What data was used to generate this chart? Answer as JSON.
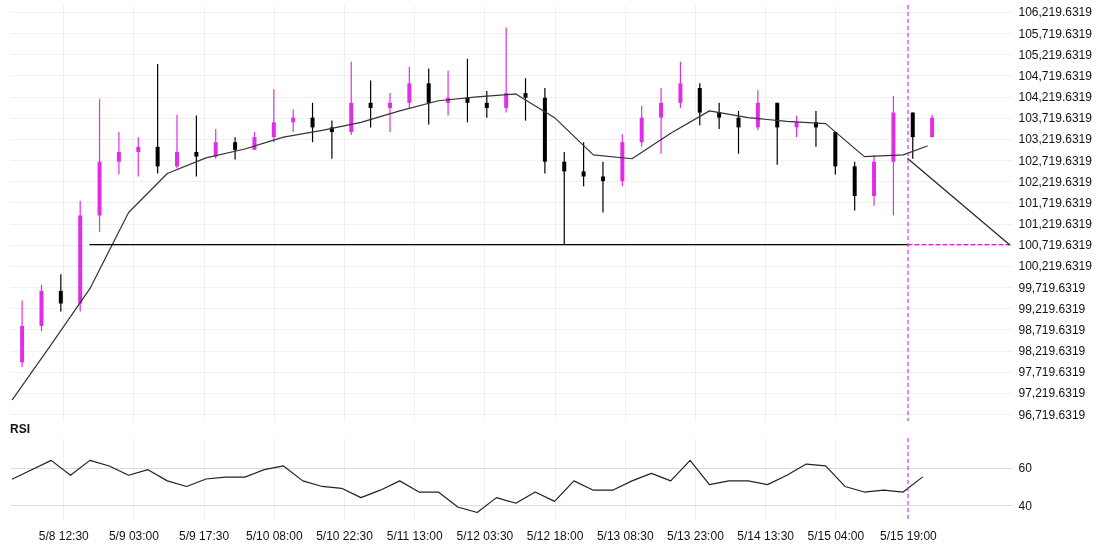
{
  "chart_data": [
    {
      "type": "candlestick",
      "tick_labels": "y",
      "grid": true,
      "xlim": [
        "--05-08T01:30",
        "--05-16T16:30"
      ],
      "ylim": [
        96555,
        106381
      ],
      "yticks": [
        {
          "value": 96719.6319,
          "label": "96,719.6319"
        },
        {
          "value": 97219.6319,
          "label": "97,219.6319"
        },
        {
          "value": 97719.6319,
          "label": "97,719.6319"
        },
        {
          "value": 98219.6319,
          "label": "98,219.6319"
        },
        {
          "value": 98719.6319,
          "label": "98,719.6319"
        },
        {
          "value": 99219.6319,
          "label": "99,219.6319"
        },
        {
          "value": 99719.6319,
          "label": "99,719.6319"
        },
        {
          "value": 100219.6319,
          "label": "100,219.6319"
        },
        {
          "value": 100719.6319,
          "label": "100,719.6319"
        },
        {
          "value": 101219.6319,
          "label": "101,219.6319"
        },
        {
          "value": 101719.6319,
          "label": "101,719.6319"
        },
        {
          "value": 102219.6319,
          "label": "102,219.6319"
        },
        {
          "value": 102719.6319,
          "label": "102,719.6319"
        },
        {
          "value": 103219.6319,
          "label": "103,219.6319"
        },
        {
          "value": 103719.6319,
          "label": "103,719.6319"
        },
        {
          "value": 104219.6319,
          "label": "104,219.6319"
        },
        {
          "value": 104719.6319,
          "label": "104,719.6319"
        },
        {
          "value": 105219.6319,
          "label": "105,219.6319"
        },
        {
          "value": 105719.6319,
          "label": "105,719.6319"
        },
        {
          "value": 106219.6319,
          "label": "106,219.6319"
        }
      ],
      "x": [
        "--05-08T04:00",
        "--05-08T08:00",
        "--05-08T12:00",
        "--05-08T16:00",
        "--05-08T20:00",
        "--05-09T00:00",
        "--05-09T04:00",
        "--05-09T08:00",
        "--05-09T12:00",
        "--05-09T16:00",
        "--05-09T20:00",
        "--05-10T00:00",
        "--05-10T04:00",
        "--05-10T08:00",
        "--05-10T12:00",
        "--05-10T16:00",
        "--05-10T20:00",
        "--05-11T00:00",
        "--05-11T04:00",
        "--05-11T08:00",
        "--05-11T12:00",
        "--05-11T16:00",
        "--05-11T20:00",
        "--05-12T00:00",
        "--05-12T04:00",
        "--05-12T08:00",
        "--05-12T12:00",
        "--05-12T16:00",
        "--05-12T20:00",
        "--05-13T00:00",
        "--05-13T04:00",
        "--05-13T08:00",
        "--05-13T12:00",
        "--05-13T16:00",
        "--05-13T20:00",
        "--05-14T00:00",
        "--05-14T04:00",
        "--05-14T08:00",
        "--05-14T12:00",
        "--05-14T16:00",
        "--05-14T20:00",
        "--05-15T00:00",
        "--05-15T04:00",
        "--05-15T08:00",
        "--05-15T12:00",
        "--05-15T16:00",
        "--05-15T20:00",
        "--05-16T00:00"
      ],
      "ohlc": [
        [
          97940,
          99400,
          97830,
          98800
        ],
        [
          98800,
          99770,
          98680,
          99630
        ],
        [
          99630,
          100020,
          99140,
          99330
        ],
        [
          99330,
          101760,
          99140,
          101410
        ],
        [
          101410,
          104160,
          101020,
          102680
        ],
        [
          102680,
          103380,
          102380,
          102910
        ],
        [
          102910,
          103260,
          102330,
          103030
        ],
        [
          103030,
          104990,
          102400,
          102570
        ],
        [
          102570,
          103790,
          102520,
          102910
        ],
        [
          102910,
          103770,
          102330,
          102800
        ],
        [
          102800,
          103450,
          102750,
          103140
        ],
        [
          103140,
          103260,
          102730,
          102960
        ],
        [
          102960,
          103380,
          102960,
          103260
        ],
        [
          103260,
          104390,
          103140,
          103610
        ],
        [
          103610,
          103910,
          103380,
          103720
        ],
        [
          103720,
          104070,
          103140,
          103490
        ],
        [
          103490,
          103650,
          102750,
          103380
        ],
        [
          103380,
          105040,
          103310,
          104070
        ],
        [
          104070,
          104600,
          103490,
          103950
        ],
        [
          103950,
          104300,
          103380,
          104070
        ],
        [
          104070,
          104920,
          103950,
          104530
        ],
        [
          104530,
          104880,
          103560,
          104070
        ],
        [
          104070,
          104830,
          103770,
          104190
        ],
        [
          104190,
          105110,
          103610,
          104070
        ],
        [
          104070,
          104350,
          103720,
          103950
        ],
        [
          103950,
          105850,
          103840,
          104300
        ],
        [
          104300,
          104650,
          103650,
          104190
        ],
        [
          104190,
          104420,
          102400,
          102680
        ],
        [
          102680,
          102910,
          100720,
          102450
        ],
        [
          102450,
          103140,
          102100,
          102330
        ],
        [
          102330,
          102680,
          101480,
          102220
        ],
        [
          102220,
          103330,
          102100,
          103140
        ],
        [
          103140,
          104000,
          103030,
          103720
        ],
        [
          103720,
          104420,
          102870,
          104070
        ],
        [
          104070,
          105040,
          103950,
          104530
        ],
        [
          104420,
          104530,
          103540,
          103840
        ],
        [
          103840,
          104070,
          103450,
          103720
        ],
        [
          103720,
          103880,
          102870,
          103490
        ],
        [
          103490,
          104370,
          103420,
          104070
        ],
        [
          104070,
          104070,
          102610,
          103490
        ],
        [
          103490,
          103770,
          103260,
          103610
        ],
        [
          103610,
          103880,
          103030,
          103490
        ],
        [
          103380,
          103380,
          102380,
          102570
        ],
        [
          102570,
          102680,
          101530,
          101870
        ],
        [
          101870,
          102840,
          101640,
          102680
        ],
        [
          102680,
          104230,
          101410,
          103840
        ],
        [
          103840,
          103840,
          102750,
          103260
        ],
        [
          103260,
          103790,
          103260,
          103720
        ]
      ],
      "colors": [
        "#e02ee8",
        "#e02ee8",
        "#000000",
        "#e02ee8",
        "#e02ee8",
        "#e02ee8",
        "#e02ee8",
        "#000000",
        "#e02ee8",
        "#000000",
        "#e02ee8",
        "#000000",
        "#e02ee8",
        "#e02ee8",
        "#e02ee8",
        "#000000",
        "#000000",
        "#e02ee8",
        "#000000",
        "#e02ee8",
        "#e02ee8",
        "#000000",
        "#e02ee8",
        "#000000",
        "#000000",
        "#e02ee8",
        "#000000",
        "#000000",
        "#000000",
        "#000000",
        "#000000",
        "#e02ee8",
        "#e02ee8",
        "#e02ee8",
        "#e02ee8",
        "#000000",
        "#000000",
        "#000000",
        "#e02ee8",
        "#000000",
        "#e02ee8",
        "#000000",
        "#000000",
        "#000000",
        "#e02ee8",
        "#e02ee8",
        "#000000",
        "#e02ee8"
      ],
      "series": [
        {
          "type": "line",
          "color": "#333333",
          "x": [
            "--05-08T02:00",
            "--05-08T10:00",
            "--05-08T18:00",
            "--05-09T02:00",
            "--05-09T10:00",
            "--05-09T18:00",
            "--05-10T02:00",
            "--05-10T10:00",
            "--05-10T18:00",
            "--05-11T02:00",
            "--05-11T10:00",
            "--05-11T18:00",
            "--05-12T02:00",
            "--05-12T10:00",
            "--05-12T18:00",
            "--05-13T02:00",
            "--05-13T10:00",
            "--05-13T18:00",
            "--05-14T02:00",
            "--05-14T10:00",
            "--05-14T18:00",
            "--05-15T02:00",
            "--05-15T10:00",
            "--05-15T18:00",
            "--05-15T23:00"
          ],
          "values": [
            97060,
            98360,
            99680,
            101480,
            102400,
            102770,
            102980,
            103260,
            103420,
            103610,
            103880,
            104120,
            104210,
            104280,
            103720,
            102840,
            102750,
            103350,
            103880,
            103720,
            103630,
            103580,
            102800,
            102840,
            103050
          ]
        },
        {
          "type": "line",
          "color": "#000000",
          "x": [
            "--05-08T18:00",
            "--05-15T19:00"
          ],
          "values": [
            100719.6319,
            100719.6319
          ]
        },
        {
          "type": "line",
          "color": "#ff00ff",
          "line_style": "dashed",
          "x": [
            "--05-15T19:00",
            "--05-16T16:30"
          ],
          "values": [
            100719.6319,
            100719.6319
          ]
        },
        {
          "type": "line",
          "color": "#222222",
          "x": [
            "--05-15T19:00",
            "--05-16T16:00"
          ],
          "values": [
            102750,
            100719.6319
          ]
        }
      ],
      "ref_lines": [
        {
          "axis": "x",
          "value": "--05-15T19:00",
          "color": "#ff00ff",
          "line_style": "dashed"
        }
      ]
    },
    {
      "type": "line",
      "title": "RSI",
      "grid": true,
      "color": "#222222",
      "xlim": [
        "--05-08T01:30",
        "--05-16T16:30"
      ],
      "xticks": [
        {
          "value": "--05-08T12:30",
          "label": "5/8 12:30"
        },
        {
          "value": "--05-09T03:00",
          "label": "5/9 03:00"
        },
        {
          "value": "--05-09T17:30",
          "label": "5/9 17:30"
        },
        {
          "value": "--05-10T08:00",
          "label": "5/10 08:00"
        },
        {
          "value": "--05-10T22:30",
          "label": "5/10 22:30"
        },
        {
          "value": "--05-11T13:00",
          "label": "5/11 13:00"
        },
        {
          "value": "--05-12T03:30",
          "label": "5/12 03:30"
        },
        {
          "value": "--05-12T18:00",
          "label": "5/12 18:00"
        },
        {
          "value": "--05-13T08:30",
          "label": "5/13 08:30"
        },
        {
          "value": "--05-13T23:00",
          "label": "5/13 23:00"
        },
        {
          "value": "--05-14T13:30",
          "label": "5/14 13:30"
        },
        {
          "value": "--05-15T04:00",
          "label": "5/15 04:00"
        },
        {
          "value": "--05-15T19:00",
          "label": "5/15 19:00"
        }
      ],
      "ylim": [
        32,
        76
      ],
      "yticks": [
        40,
        60
      ],
      "x": [
        "--05-08T02:00",
        "--05-08T06:00",
        "--05-08T10:00",
        "--05-08T14:00",
        "--05-08T18:00",
        "--05-08T22:00",
        "--05-09T02:00",
        "--05-09T06:00",
        "--05-09T10:00",
        "--05-09T14:00",
        "--05-09T18:00",
        "--05-09T22:00",
        "--05-10T02:00",
        "--05-10T06:00",
        "--05-10T10:00",
        "--05-10T14:00",
        "--05-10T18:00",
        "--05-10T22:00",
        "--05-11T02:00",
        "--05-11T06:00",
        "--05-11T10:00",
        "--05-11T14:00",
        "--05-11T18:00",
        "--05-11T22:00",
        "--05-12T02:00",
        "--05-12T06:00",
        "--05-12T10:00",
        "--05-12T14:00",
        "--05-12T18:00",
        "--05-12T22:00",
        "--05-13T02:00",
        "--05-13T06:00",
        "--05-13T10:00",
        "--05-13T14:00",
        "--05-13T18:00",
        "--05-13T22:00",
        "--05-14T02:00",
        "--05-14T06:00",
        "--05-14T10:00",
        "--05-14T14:00",
        "--05-14T18:00",
        "--05-14T22:00",
        "--05-15T02:00",
        "--05-15T06:00",
        "--05-15T10:00",
        "--05-15T14:00",
        "--05-15T18:00",
        "--05-15T22:00"
      ],
      "values": [
        54,
        59,
        64,
        56,
        64,
        61,
        56,
        59,
        53,
        50,
        54,
        55,
        55,
        59,
        61,
        53,
        50,
        49,
        44,
        48,
        53,
        47,
        47,
        39,
        36,
        44,
        41,
        47,
        42,
        53,
        48,
        48,
        53,
        57,
        53,
        64,
        51,
        53,
        53,
        51,
        56,
        62,
        61,
        50,
        47,
        48,
        47,
        55
      ],
      "ref_lines": [
        {
          "axis": "x",
          "value": "--05-15T19:00",
          "color": "#ff00ff",
          "line_style": "dashed"
        }
      ]
    }
  ]
}
